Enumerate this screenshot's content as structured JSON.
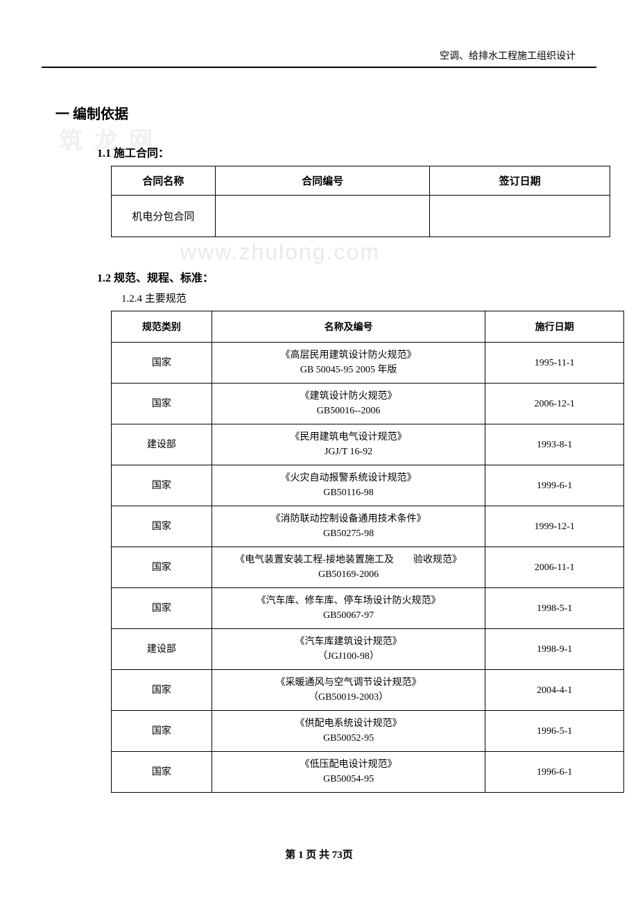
{
  "header": {
    "text": "空调、给排水工程施工组织设计"
  },
  "section1": {
    "title": "一  编制依据",
    "sub1_1": "1.1 施工合同：",
    "sub1_2": "1.2   规范、规程、标准：",
    "sub1_2_4": "1.2.4 主要规范"
  },
  "contract_table": {
    "headers": {
      "name": "合同名称",
      "number": "合同编号",
      "date": "签订日期"
    },
    "row": {
      "name": "机电分包合同",
      "number": "",
      "date": ""
    }
  },
  "specs_table": {
    "headers": {
      "category": "规范类别",
      "name": "名称及编号",
      "date": "施行日期"
    },
    "rows": [
      {
        "category": "国家",
        "name": "《高层民用建筑设计防火规范》",
        "code": "GB 50045-95 2005 年版",
        "date": "1995-11-1"
      },
      {
        "category": "国家",
        "name": "《建筑设计防火规范》",
        "code": "GB50016--2006",
        "date": "2006-12-1"
      },
      {
        "category": "建设部",
        "name": "《民用建筑电气设计规范》",
        "code": "JGJ/T 16-92",
        "date": "1993-8-1"
      },
      {
        "category": "国家",
        "name": "《火灾自动报警系统设计规范》",
        "code": "GB50116-98",
        "date": "1999-6-1"
      },
      {
        "category": "国家",
        "name": "《消防联动控制设备通用技术条件》",
        "code": "GB50275-98",
        "date": "1999-12-1"
      },
      {
        "category": "国家",
        "name": "《电气装置安装工程-接地装置施工及　　验收规范》",
        "code": "GB50169-2006",
        "date": "2006-11-1"
      },
      {
        "category": "国家",
        "name": "《汽车库、修车库、停车场设计防火规范》",
        "code": "GB50067-97",
        "date": "1998-5-1"
      },
      {
        "category": "建设部",
        "name": "《汽车库建筑设计规范》",
        "code": "（JGJ100-98）",
        "date": "1998-9-1"
      },
      {
        "category": "国家",
        "name": "《采暖通风与空气调节设计规范》",
        "code": "（GB50019-2003）",
        "date": "2004-4-1"
      },
      {
        "category": "国家",
        "name": "《供配电系统设计规范》",
        "code": "GB50052-95",
        "date": "1996-5-1"
      },
      {
        "category": "国家",
        "name": "《低压配电设计规范》",
        "code": "GB50054-95",
        "date": "1996-6-1"
      }
    ]
  },
  "footer": {
    "text": "第 1 页 共 73页"
  },
  "watermarks": {
    "w1": "筑 龙 网",
    "w2": "www.zhulong.com"
  },
  "colors": {
    "text": "#000000",
    "background": "#ffffff",
    "border": "#000000",
    "watermark": "#f0f0f0"
  }
}
